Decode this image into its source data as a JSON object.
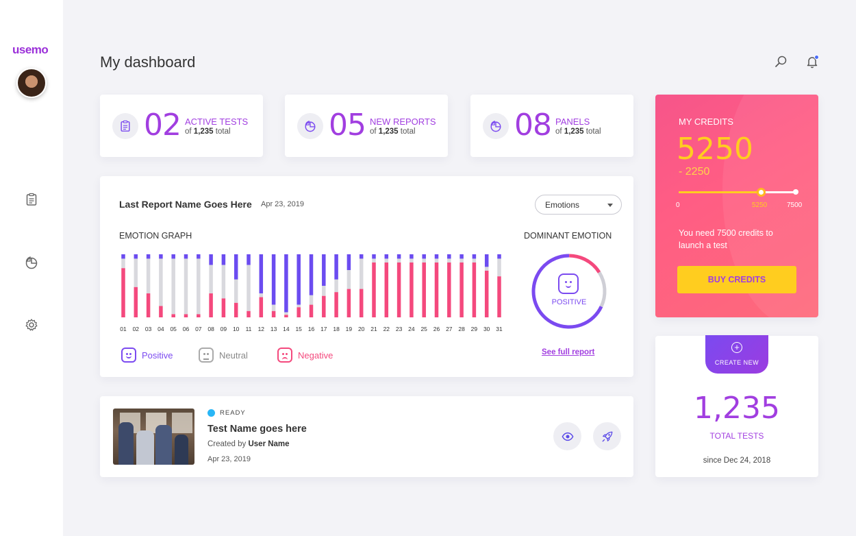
{
  "app": {
    "logo": "usemo"
  },
  "header": {
    "title": "My dashboard"
  },
  "stats": [
    {
      "number": "02",
      "label": "ACTIVE TESTS",
      "sub_prefix": "of",
      "sub_value": "1,235",
      "sub_suffix": "total",
      "icon": "clipboard-icon"
    },
    {
      "number": "05",
      "label": "NEW REPORTS",
      "sub_prefix": "of",
      "sub_value": "1,235",
      "sub_suffix": "total",
      "icon": "pie-chart-icon"
    },
    {
      "number": "08",
      "label": "PANELS",
      "sub_prefix": "of",
      "sub_value": "1,235",
      "sub_suffix": "total",
      "icon": "pie-chart-icon"
    }
  ],
  "credits": {
    "title": "MY CREDITS",
    "value": "5250",
    "delta": "- 2250",
    "slider_min_label": "0",
    "slider_value_label": "5250",
    "slider_max_label": "7500",
    "slider_fraction": 0.7,
    "message": "You need 7500 credits to launch a test",
    "button": "BUY CREDITS"
  },
  "report": {
    "title": "Last Report Name Goes Here",
    "date": "Apr 23, 2019",
    "select_value": "Emotions",
    "graph_label": "EMOTION GRAPH",
    "dominant_label": "DOMINANT EMOTION",
    "dominant_value": "POSITIVE",
    "see_full": "See full report",
    "legend": {
      "positive": "Positive",
      "neutral": "Neutral",
      "negative": "Negative"
    }
  },
  "chart_data": {
    "type": "bar",
    "stacked": true,
    "categories": [
      "01",
      "02",
      "03",
      "04",
      "05",
      "06",
      "07",
      "08",
      "09",
      "10",
      "11",
      "12",
      "13",
      "14",
      "15",
      "16",
      "17",
      "18",
      "19",
      "20",
      "21",
      "22",
      "23",
      "24",
      "25",
      "26",
      "27",
      "28",
      "29",
      "30",
      "31"
    ],
    "series": [
      {
        "name": "Positive",
        "color": "#6b4cf0",
        "values": [
          0.07,
          0.07,
          0.07,
          0.07,
          0.07,
          0.07,
          0.07,
          0.17,
          0.17,
          0.4,
          0.17,
          0.62,
          0.8,
          0.92,
          0.8,
          0.65,
          0.5,
          0.4,
          0.25,
          0.07,
          0.07,
          0.07,
          0.07,
          0.07,
          0.07,
          0.07,
          0.07,
          0.07,
          0.07,
          0.2,
          0.07
        ]
      },
      {
        "name": "Neutral",
        "color": "#d9d9de",
        "values": [
          0.15,
          0.45,
          0.55,
          0.75,
          0.88,
          0.88,
          0.88,
          0.45,
          0.53,
          0.37,
          0.73,
          0.06,
          0.1,
          0.04,
          0.04,
          0.15,
          0.16,
          0.2,
          0.3,
          0.48,
          0.06,
          0.06,
          0.06,
          0.06,
          0.06,
          0.06,
          0.06,
          0.06,
          0.06,
          0.06,
          0.28
        ]
      },
      {
        "name": "Negative",
        "color": "#f4497d",
        "values": [
          0.78,
          0.48,
          0.38,
          0.18,
          0.05,
          0.05,
          0.05,
          0.38,
          0.3,
          0.23,
          0.1,
          0.32,
          0.1,
          0.04,
          0.16,
          0.2,
          0.34,
          0.4,
          0.45,
          0.45,
          0.87,
          0.87,
          0.87,
          0.87,
          0.87,
          0.87,
          0.87,
          0.87,
          0.87,
          0.74,
          0.65
        ]
      }
    ],
    "ylim": [
      0,
      1
    ]
  },
  "dominant_donut": {
    "positive_fraction": 0.68,
    "negative_fraction": 0.16,
    "neutral_fraction": 0.16
  },
  "test": {
    "status": "READY",
    "name": "Test Name goes here",
    "created_by_prefix": "Created by",
    "created_by": "User Name",
    "date": "Apr 23, 2019"
  },
  "total": {
    "create_label": "CREATE NEW",
    "number": "1,235",
    "label": "TOTAL TESTS",
    "since": "since Dec 24, 2018"
  },
  "colors": {
    "accent": "#a13ee0",
    "positive": "#6b4cf0",
    "negative": "#f4497d",
    "neutral": "#d9d9de",
    "credit_yellow": "#ffcd1f"
  }
}
